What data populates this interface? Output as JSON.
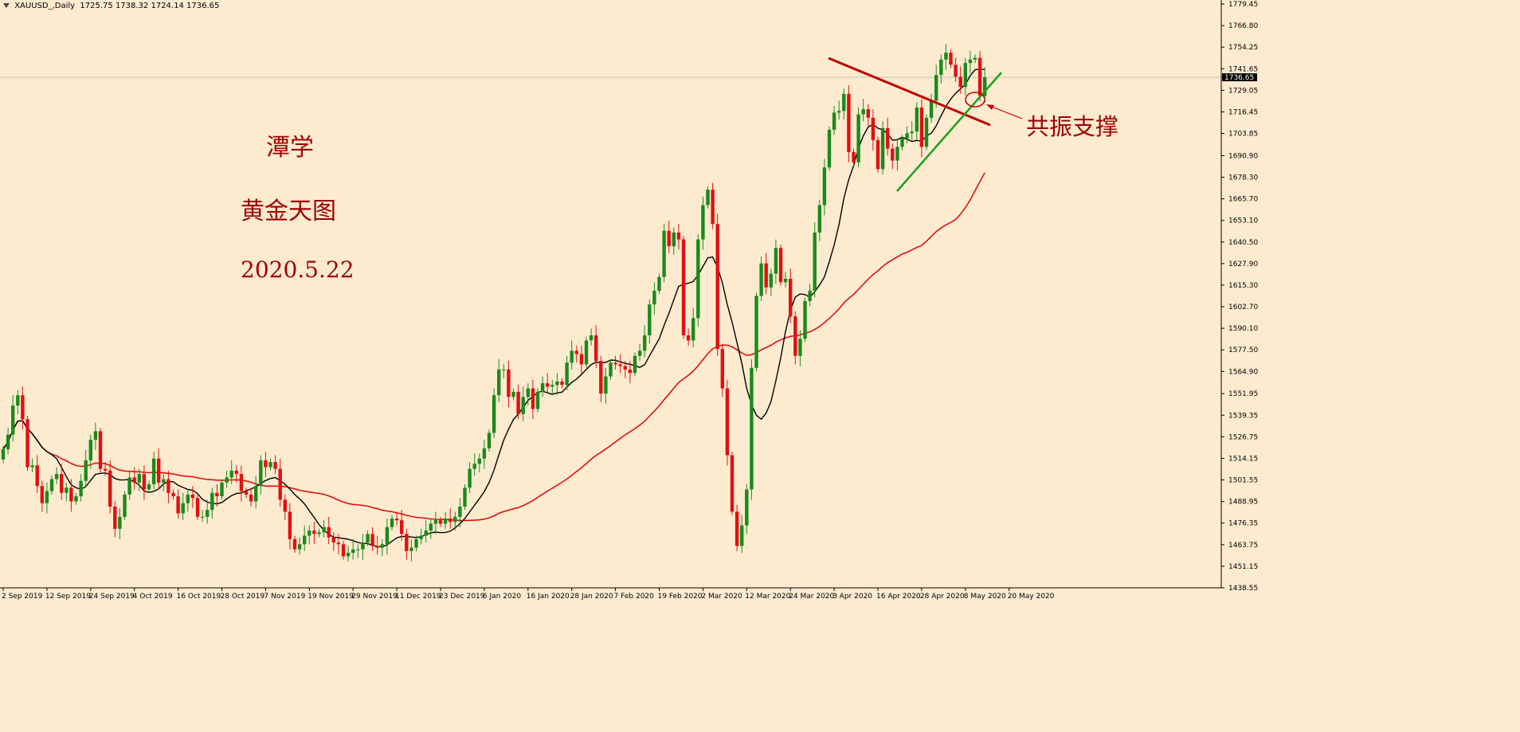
{
  "header": {
    "symbol": "XAUUSD_,Daily",
    "ohlc": "1725.75 1738.32 1724.14 1736.65"
  },
  "annotations": {
    "author": "潭学",
    "subtitle": "黄金天图",
    "date": "2020.5.22",
    "callout": "共振支撑"
  },
  "colors": {
    "background": "#fdebd0",
    "bull": "#1a8a1a",
    "bear": "#e01010",
    "ma_fast": "#000000",
    "ma_slow": "#e01010",
    "trend_down": "#c00000",
    "trend_up": "#1aa01a"
  },
  "chart_data": {
    "type": "candlestick",
    "symbol": "XAUUSD_",
    "timeframe": "Daily",
    "current_price": "1736.65",
    "ylim": [
      1438.55,
      1779.45
    ],
    "y_ticks": [
      "1779.45",
      "1766.80",
      "1754.25",
      "1741.65",
      "1729.05",
      "1716.45",
      "1703.85",
      "1690.90",
      "1678.30",
      "1665.70",
      "1653.10",
      "1640.50",
      "1627.90",
      "1615.30",
      "1602.70",
      "1590.10",
      "1577.50",
      "1564.90",
      "1551.95",
      "1539.35",
      "1526.75",
      "1514.15",
      "1501.55",
      "1488.95",
      "1476.35",
      "1463.75",
      "1451.15",
      "1438.55"
    ],
    "x_ticks": [
      "2 Sep 2019",
      "12 Sep 2019",
      "24 Sep 2019",
      "4 Oct 2019",
      "16 Oct 2019",
      "28 Oct 2019",
      "7 Nov 2019",
      "19 Nov 2019",
      "29 Nov 2019",
      "11 Dec 2019",
      "23 Dec 2019",
      "6 Jan 2020",
      "16 Jan 2020",
      "28 Jan 2020",
      "7 Feb 2020",
      "19 Feb 2020",
      "2 Mar 2020",
      "12 Mar 2020",
      "24 Mar 2020",
      "3 Apr 2020",
      "16 Apr 2020",
      "28 Apr 2020",
      "8 May 2020",
      "20 May 2020"
    ],
    "candles_per_tick": 9,
    "series": [
      {
        "type": "candlestick",
        "closes": [
          1519.5,
          1528.0,
          1545.0,
          1551.0,
          1537.0,
          1509.0,
          1510.0,
          1498.0,
          1488.0,
          1495.0,
          1502.0,
          1505.0,
          1494.0,
          1497.0,
          1489.0,
          1492.0,
          1501.0,
          1513.0,
          1525.0,
          1530.0,
          1508.0,
          1507.0,
          1486.0,
          1473.0,
          1480.0,
          1493.0,
          1503.0,
          1500.0,
          1505.0,
          1496.0,
          1499.0,
          1514.0,
          1500.0,
          1502.0,
          1494.0,
          1492.0,
          1482.0,
          1488.0,
          1493.0,
          1491.0,
          1480.0,
          1480.0,
          1484.0,
          1494.0,
          1492.0,
          1500.0,
          1503.0,
          1507.0,
          1505.0,
          1495.0,
          1493.0,
          1489.0,
          1498.0,
          1513.0,
          1509.0,
          1512.0,
          1508.0,
          1490.0,
          1483.0,
          1467.0,
          1461.0,
          1464.0,
          1469.0,
          1472.0,
          1470.0,
          1471.0,
          1474.0,
          1468.0,
          1465.0,
          1464.0,
          1457.0,
          1459.0,
          1461.0,
          1461.0,
          1465.0,
          1470.0,
          1463.0,
          1462.0,
          1464.0,
          1474.0,
          1479.0,
          1478.0,
          1470.0,
          1460.0,
          1462.0,
          1467.0,
          1469.0,
          1472.0,
          1476.0,
          1478.0,
          1476.0,
          1479.0,
          1477.0,
          1480.0,
          1486.0,
          1497.0,
          1508.0,
          1511.0,
          1514.0,
          1520.0,
          1529.0,
          1551.0,
          1566.0,
          1566.0,
          1550.0,
          1553.0,
          1540.0,
          1550.0,
          1555.0,
          1543.0,
          1553.0,
          1558.0,
          1556.0,
          1557.0,
          1559.0,
          1557.0,
          1570.0,
          1577.0,
          1575.0,
          1569.0,
          1583.0,
          1586.0,
          1571.0,
          1552.0,
          1562.0,
          1570.0,
          1569.0,
          1568.0,
          1566.0,
          1564.0,
          1574.0,
          1577.0,
          1586.0,
          1604.0,
          1612.0,
          1620.0,
          1647.0,
          1638.0,
          1646.0,
          1642.0,
          1586.0,
          1583.0,
          1596.0,
          1642.0,
          1662.0,
          1671.0,
          1651.0,
          1578.0,
          1555.0,
          1516.0,
          1483.0,
          1463.0,
          1475.0,
          1496.0,
          1567.0,
          1609.0,
          1628.0,
          1614.0,
          1622.0,
          1637.0,
          1617.0,
          1619.0,
          1597.0,
          1574.0,
          1584.0,
          1606.0,
          1612.0,
          1646.0,
          1662.0,
          1684.0,
          1706.0,
          1716.0,
          1717.0,
          1727.0,
          1693.0,
          1687.0,
          1715.0,
          1718.0,
          1713.0,
          1700.0,
          1683.0,
          1707.0,
          1695.0,
          1688.0,
          1696.0,
          1701.0,
          1704.0,
          1705.0,
          1719.0,
          1696.0,
          1713.0,
          1723.0,
          1738.0,
          1747.0,
          1751.0,
          1744.0,
          1737.0,
          1731.0,
          1745.0,
          1747.0,
          1748.0,
          1725.75,
          1736.65
        ]
      },
      {
        "name": "",
        "type": "line"
      },
      {
        "name": "",
        "type": "line"
      }
    ]
  }
}
